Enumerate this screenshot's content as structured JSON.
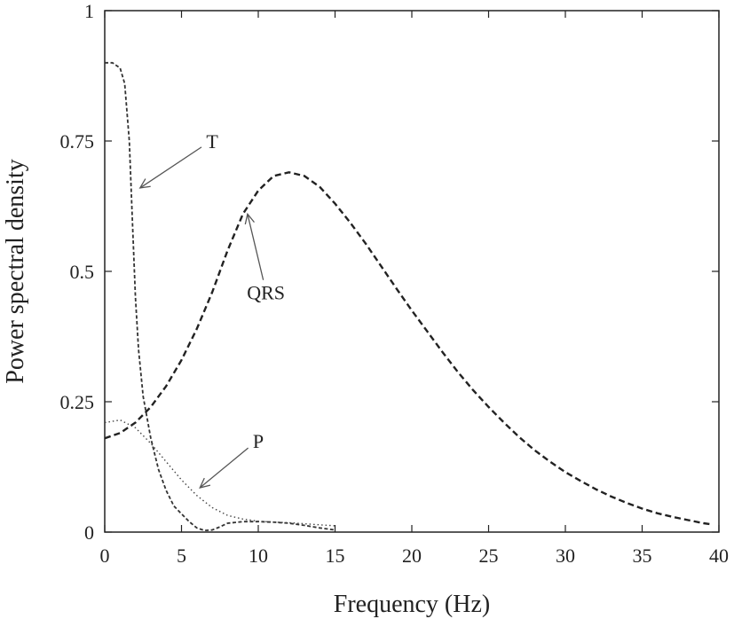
{
  "chart_data": {
    "type": "line",
    "xlabel": "Frequency (Hz)",
    "ylabel": "Power spectral density",
    "xlim": [
      0,
      40
    ],
    "ylim": [
      0,
      1
    ],
    "x_ticks": [
      "0",
      "5",
      "10",
      "15",
      "20",
      "25",
      "30",
      "35",
      "40"
    ],
    "y_ticks": [
      "0",
      "0.25",
      "0.5",
      "0.75",
      "1"
    ],
    "grid": false,
    "legend": "none",
    "series": [
      {
        "name": "T",
        "style": "dashed-fine",
        "color": "#333333",
        "points": [
          [
            0,
            0.9
          ],
          [
            0.5,
            0.9
          ],
          [
            1,
            0.89
          ],
          [
            1.3,
            0.86
          ],
          [
            1.6,
            0.75
          ],
          [
            1.8,
            0.6
          ],
          [
            2.0,
            0.45
          ],
          [
            2.2,
            0.35
          ],
          [
            2.5,
            0.26
          ],
          [
            3,
            0.18
          ],
          [
            3.5,
            0.12
          ],
          [
            4,
            0.08
          ],
          [
            4.5,
            0.05
          ],
          [
            5,
            0.035
          ],
          [
            5.5,
            0.02
          ],
          [
            6,
            0.008
          ],
          [
            6.5,
            0.003
          ],
          [
            7,
            0.004
          ],
          [
            7.5,
            0.01
          ],
          [
            8,
            0.017
          ],
          [
            9,
            0.02
          ],
          [
            10,
            0.02
          ],
          [
            11,
            0.019
          ],
          [
            12,
            0.017
          ],
          [
            13,
            0.013
          ],
          [
            14,
            0.008
          ],
          [
            15,
            0.004
          ]
        ]
      },
      {
        "name": "QRS",
        "style": "dashed",
        "color": "#222222",
        "points": [
          [
            0,
            0.18
          ],
          [
            1,
            0.19
          ],
          [
            2,
            0.21
          ],
          [
            3,
            0.24
          ],
          [
            4,
            0.28
          ],
          [
            5,
            0.33
          ],
          [
            6,
            0.39
          ],
          [
            7,
            0.46
          ],
          [
            8,
            0.54
          ],
          [
            9,
            0.61
          ],
          [
            10,
            0.655
          ],
          [
            11,
            0.683
          ],
          [
            12,
            0.69
          ],
          [
            13,
            0.683
          ],
          [
            14,
            0.662
          ],
          [
            15,
            0.63
          ],
          [
            16,
            0.593
          ],
          [
            17,
            0.553
          ],
          [
            18,
            0.51
          ],
          [
            19,
            0.467
          ],
          [
            20,
            0.425
          ],
          [
            21,
            0.385
          ],
          [
            22,
            0.345
          ],
          [
            23,
            0.307
          ],
          [
            24,
            0.272
          ],
          [
            25,
            0.24
          ],
          [
            26,
            0.21
          ],
          [
            27,
            0.182
          ],
          [
            28,
            0.157
          ],
          [
            29,
            0.135
          ],
          [
            30,
            0.115
          ],
          [
            31,
            0.098
          ],
          [
            32,
            0.082
          ],
          [
            33,
            0.068
          ],
          [
            34,
            0.056
          ],
          [
            35,
            0.045
          ],
          [
            36,
            0.036
          ],
          [
            37,
            0.029
          ],
          [
            38,
            0.023
          ],
          [
            39,
            0.017
          ],
          [
            39.5,
            0.015
          ]
        ]
      },
      {
        "name": "P",
        "style": "dotted",
        "color": "#444444",
        "points": [
          [
            0,
            0.21
          ],
          [
            1,
            0.215
          ],
          [
            2,
            0.2
          ],
          [
            3,
            0.17
          ],
          [
            4,
            0.135
          ],
          [
            5,
            0.1
          ],
          [
            6,
            0.07
          ],
          [
            7,
            0.047
          ],
          [
            8,
            0.032
          ],
          [
            9,
            0.025
          ],
          [
            10,
            0.021
          ],
          [
            11,
            0.019
          ],
          [
            12,
            0.018
          ],
          [
            13,
            0.016
          ],
          [
            14,
            0.014
          ],
          [
            15,
            0.012
          ]
        ]
      }
    ],
    "annotations": [
      {
        "label": "T",
        "text_at": [
          7,
          0.74
        ],
        "arrow_to": [
          2.3,
          0.66
        ]
      },
      {
        "label": "QRS",
        "text_at": [
          10.5,
          0.45
        ],
        "arrow_to": [
          9.3,
          0.61
        ]
      },
      {
        "label": "P",
        "text_at": [
          10,
          0.165
        ],
        "arrow_to": [
          6.2,
          0.085
        ]
      }
    ]
  }
}
